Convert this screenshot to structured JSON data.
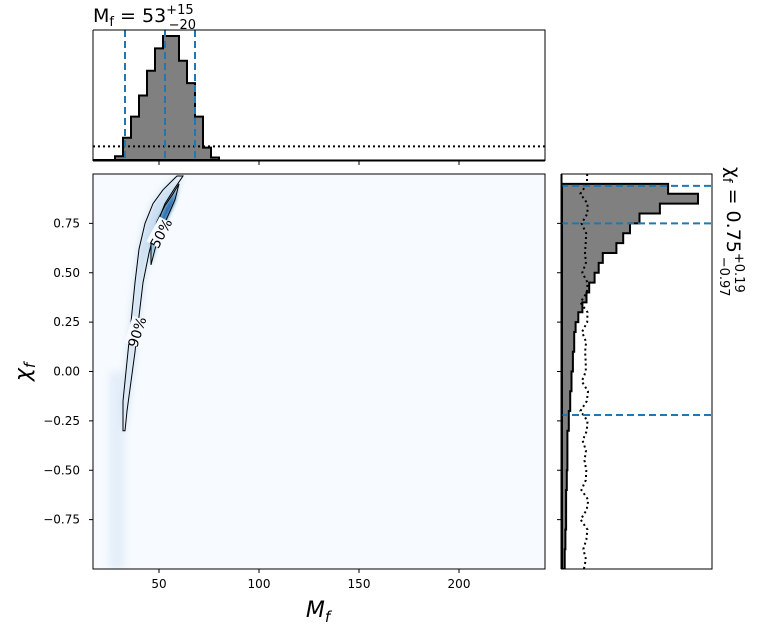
{
  "chart_data": [
    {
      "type": "heatmap",
      "panel": "joint",
      "xlabel": "M_f",
      "ylabel": "χ_f",
      "xlim": [
        17,
        243
      ],
      "ylim": [
        -1,
        1
      ],
      "xticks": [
        50,
        100,
        150,
        200
      ],
      "yticks": [
        -0.75,
        -0.5,
        -0.25,
        0.0,
        0.25,
        0.5,
        0.75
      ],
      "xtick_labels": [
        "50",
        "100",
        "150",
        "200"
      ],
      "ytick_labels": [
        "−0.75",
        "−0.50",
        "−0.25",
        "0.00",
        "0.25",
        "0.50",
        "0.75"
      ],
      "colormap": "Blues",
      "contours": [
        {
          "label": "90%",
          "points": [
            [
              32,
              -0.3
            ],
            [
              32,
              -0.15
            ],
            [
              34,
              0.05
            ],
            [
              36,
              0.25
            ],
            [
              38,
              0.45
            ],
            [
              40,
              0.62
            ],
            [
              43,
              0.75
            ],
            [
              47,
              0.85
            ],
            [
              52,
              0.92
            ],
            [
              57,
              0.97
            ],
            [
              59,
              0.99
            ],
            [
              62,
              0.99
            ],
            [
              58,
              0.93
            ],
            [
              53,
              0.85
            ],
            [
              48,
              0.72
            ],
            [
              45,
              0.6
            ],
            [
              42,
              0.45
            ],
            [
              40,
              0.28
            ],
            [
              38,
              0.1
            ],
            [
              36,
              -0.05
            ],
            [
              34,
              -0.2
            ],
            [
              33,
              -0.3
            ],
            [
              32,
              -0.3
            ]
          ]
        },
        {
          "label": "50%",
          "points": [
            [
              46,
              0.54
            ],
            [
              46,
              0.66
            ],
            [
              49,
              0.76
            ],
            [
              53,
              0.84
            ],
            [
              57,
              0.9
            ],
            [
              60,
              0.95
            ],
            [
              58,
              0.87
            ],
            [
              55,
              0.8
            ],
            [
              51,
              0.71
            ],
            [
              48,
              0.62
            ],
            [
              46,
              0.54
            ]
          ]
        }
      ]
    },
    {
      "type": "histogram",
      "panel": "top-marginal",
      "title": "M_f = 53^{+15}_{−20}",
      "median": 53,
      "lower": 33,
      "upper": 68,
      "bin_edges": [
        17,
        24,
        28,
        32,
        36,
        40,
        44,
        48,
        52,
        56,
        60,
        64,
        68,
        72,
        76,
        80
      ],
      "values": [
        0,
        0,
        0.03,
        0.18,
        0.35,
        0.52,
        0.72,
        0.9,
        1.0,
        1.0,
        0.8,
        0.62,
        0.35,
        0.1,
        0.02
      ],
      "prior_level": 0.11,
      "prior_style": "dotted"
    },
    {
      "type": "histogram",
      "panel": "right-marginal",
      "orientation": "horizontal",
      "title": "χ_f = 0.75^{+0.19}_{−0.97}",
      "median": 0.75,
      "lower": -0.22,
      "upper": 0.94,
      "bin_edges": [
        0.95,
        0.9,
        0.85,
        0.8,
        0.75,
        0.7,
        0.65,
        0.6,
        0.55,
        0.5,
        0.45,
        0.4,
        0.35,
        0.3,
        0.25,
        0.2,
        0.1,
        0.0,
        -0.1,
        -0.2,
        -0.3,
        -0.4,
        -0.5,
        -0.6,
        -0.7,
        -0.8,
        -0.9,
        -1.0
      ],
      "values": [
        0.78,
        1.0,
        0.72,
        0.57,
        0.5,
        0.45,
        0.4,
        0.3,
        0.27,
        0.24,
        0.2,
        0.18,
        0.15,
        0.12,
        0.1,
        0.09,
        0.08,
        0.07,
        0.06,
        0.05,
        0.04,
        0.04,
        0.035,
        0.03,
        0.03,
        0.025,
        0.02
      ],
      "prior_level": 0.17,
      "prior_style": "dotted"
    }
  ]
}
